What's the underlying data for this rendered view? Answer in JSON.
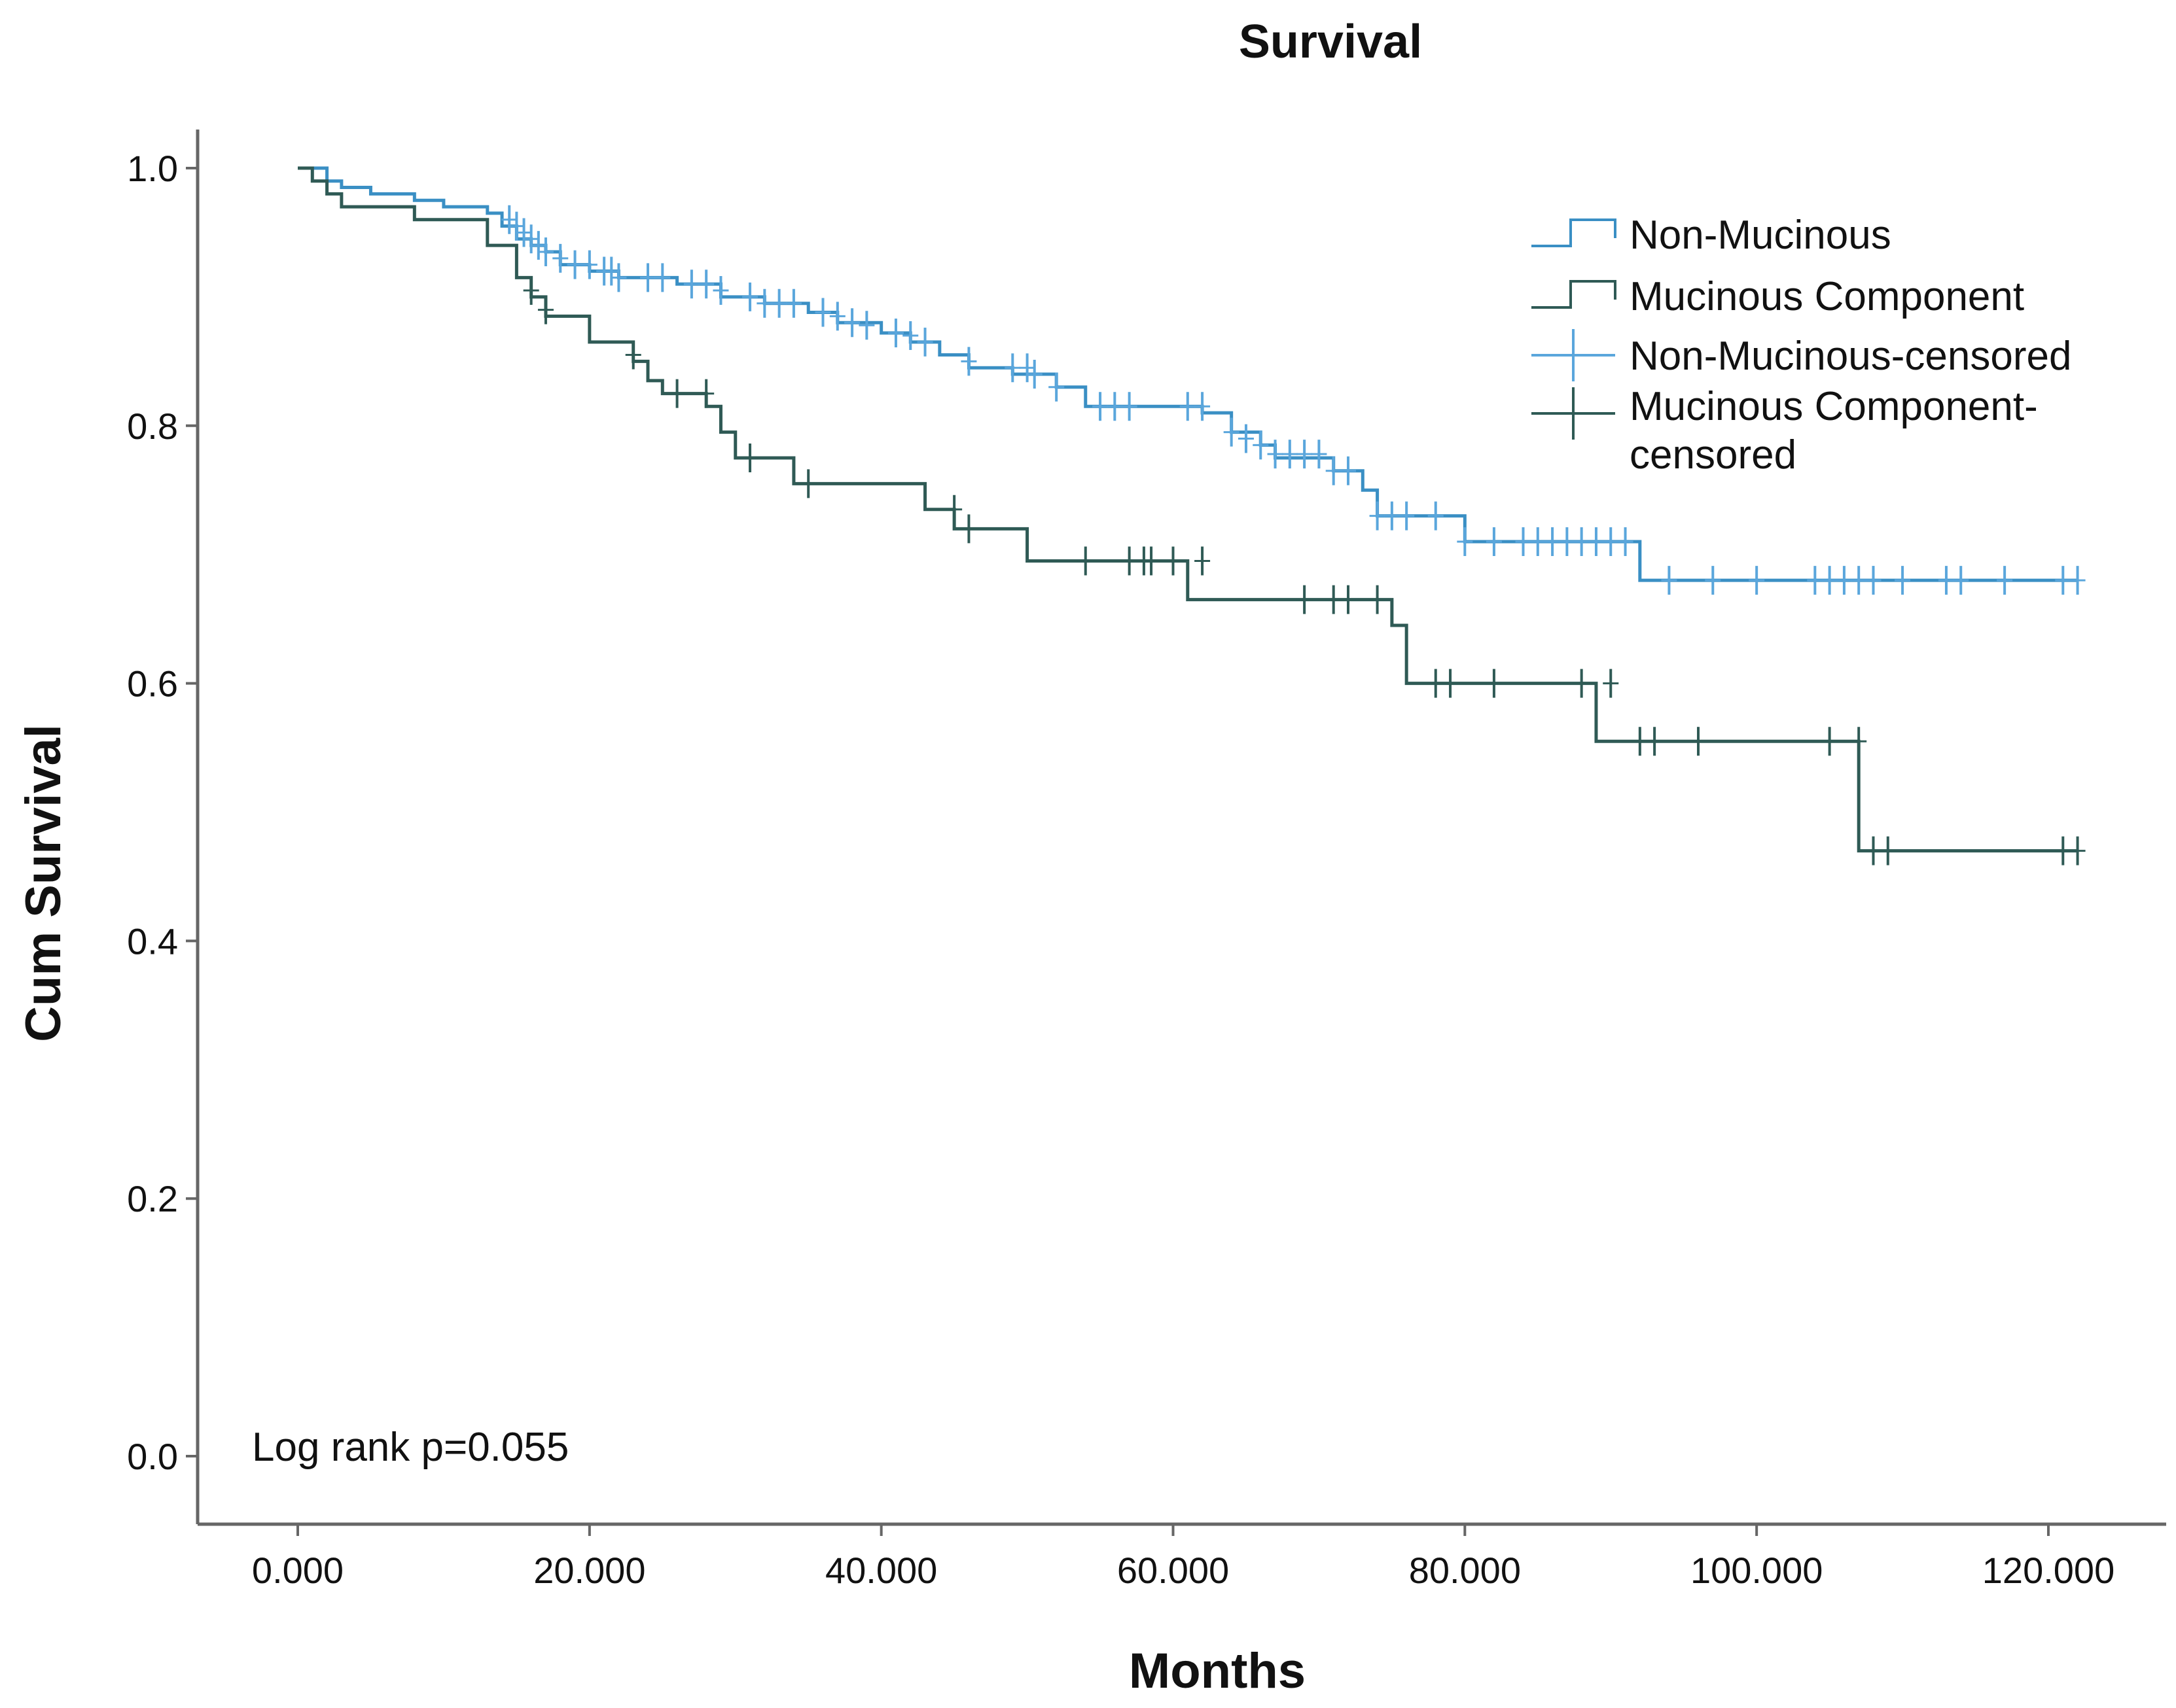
{
  "chart_data": {
    "type": "line",
    "subtype": "kaplan-meier-step",
    "title": "Survival",
    "xlabel": "Months",
    "ylabel": "Cum Survival",
    "xlim": [
      -3,
      126
    ],
    "ylim": [
      -0.05,
      1.03
    ],
    "x_ticks": [
      0,
      20,
      40,
      60,
      80,
      100,
      120
    ],
    "x_tick_labels": [
      "0.000",
      "20.000",
      "40.000",
      "60.000",
      "80.000",
      "100.000",
      "120.000"
    ],
    "y_ticks": [
      0,
      0.2,
      0.4,
      0.6,
      0.8,
      1.0
    ],
    "y_tick_labels": [
      "0.0",
      "0.2",
      "0.4",
      "0.6",
      "0.8",
      "1.0"
    ],
    "grid": false,
    "legend_position": "top-right",
    "annotation": "Log rank p=0.055",
    "colors": {
      "non_mucinous": "#3a8fc4",
      "non_mucinous_censor": "#5aa6dc",
      "mucinous": "#2f5a55",
      "mucinous_censor": "#2f5a55",
      "axis": "#666666",
      "text": "#111111"
    },
    "legend": [
      {
        "label": "Non-Mucinous",
        "kind": "line",
        "series": "non_mucinous"
      },
      {
        "label": "Mucinous Component",
        "kind": "line",
        "series": "mucinous"
      },
      {
        "label": "Non-Mucinous-censored",
        "kind": "censor",
        "series": "non_mucinous_censor"
      },
      {
        "label": "Mucinous Component-censored",
        "kind": "censor",
        "series": "mucinous_censor"
      }
    ],
    "series": [
      {
        "name": "Non-Mucinous",
        "key": "non_mucinous",
        "steps": [
          [
            0,
            1.0
          ],
          [
            2,
            0.99
          ],
          [
            3,
            0.985
          ],
          [
            5,
            0.98
          ],
          [
            8,
            0.975
          ],
          [
            10,
            0.97
          ],
          [
            13,
            0.965
          ],
          [
            14,
            0.955
          ],
          [
            15,
            0.945
          ],
          [
            16,
            0.94
          ],
          [
            17,
            0.935
          ],
          [
            18,
            0.925
          ],
          [
            20,
            0.92
          ],
          [
            22,
            0.915
          ],
          [
            26,
            0.91
          ],
          [
            29,
            0.9
          ],
          [
            32,
            0.895
          ],
          [
            35,
            0.888
          ],
          [
            37,
            0.88
          ],
          [
            40,
            0.872
          ],
          [
            42,
            0.865
          ],
          [
            44,
            0.855
          ],
          [
            46,
            0.845
          ],
          [
            49,
            0.84
          ],
          [
            52,
            0.83
          ],
          [
            54,
            0.815
          ],
          [
            62,
            0.81
          ],
          [
            64,
            0.795
          ],
          [
            66,
            0.785
          ],
          [
            67,
            0.775
          ],
          [
            71,
            0.765
          ],
          [
            73,
            0.75
          ],
          [
            74,
            0.73
          ],
          [
            80,
            0.71
          ],
          [
            92,
            0.68
          ],
          [
            122,
            0.68
          ]
        ],
        "censored": [
          [
            14.5,
            0.96
          ],
          [
            15,
            0.955
          ],
          [
            15.5,
            0.95
          ],
          [
            16,
            0.945
          ],
          [
            16.5,
            0.94
          ],
          [
            17,
            0.935
          ],
          [
            18,
            0.93
          ],
          [
            19,
            0.925
          ],
          [
            20,
            0.925
          ],
          [
            21,
            0.92
          ],
          [
            21.5,
            0.92
          ],
          [
            22,
            0.915
          ],
          [
            24,
            0.915
          ],
          [
            25,
            0.915
          ],
          [
            27,
            0.91
          ],
          [
            28,
            0.91
          ],
          [
            29,
            0.905
          ],
          [
            31,
            0.9
          ],
          [
            32,
            0.895
          ],
          [
            33,
            0.895
          ],
          [
            34,
            0.895
          ],
          [
            36,
            0.888
          ],
          [
            37,
            0.885
          ],
          [
            38,
            0.88
          ],
          [
            39,
            0.878
          ],
          [
            41,
            0.872
          ],
          [
            42,
            0.87
          ],
          [
            43,
            0.865
          ],
          [
            46,
            0.85
          ],
          [
            49,
            0.845
          ],
          [
            50,
            0.845
          ],
          [
            50.5,
            0.84
          ],
          [
            52,
            0.83
          ],
          [
            55,
            0.815
          ],
          [
            56,
            0.815
          ],
          [
            57,
            0.815
          ],
          [
            61,
            0.815
          ],
          [
            62,
            0.815
          ],
          [
            64,
            0.795
          ],
          [
            65,
            0.79
          ],
          [
            66,
            0.785
          ],
          [
            67,
            0.778
          ],
          [
            68,
            0.778
          ],
          [
            69,
            0.778
          ],
          [
            70,
            0.778
          ],
          [
            71,
            0.765
          ],
          [
            72,
            0.765
          ],
          [
            74,
            0.73
          ],
          [
            75,
            0.73
          ],
          [
            76,
            0.73
          ],
          [
            78,
            0.73
          ],
          [
            80,
            0.71
          ],
          [
            82,
            0.71
          ],
          [
            84,
            0.71
          ],
          [
            85,
            0.71
          ],
          [
            86,
            0.71
          ],
          [
            87,
            0.71
          ],
          [
            88,
            0.71
          ],
          [
            89,
            0.71
          ],
          [
            90,
            0.71
          ],
          [
            91,
            0.71
          ],
          [
            94,
            0.68
          ],
          [
            97,
            0.68
          ],
          [
            100,
            0.68
          ],
          [
            104,
            0.68
          ],
          [
            105,
            0.68
          ],
          [
            106,
            0.68
          ],
          [
            107,
            0.68
          ],
          [
            108,
            0.68
          ],
          [
            110,
            0.68
          ],
          [
            113,
            0.68
          ],
          [
            114,
            0.68
          ],
          [
            117,
            0.68
          ],
          [
            121,
            0.68
          ],
          [
            122,
            0.68
          ]
        ]
      },
      {
        "name": "Mucinous Component",
        "key": "mucinous",
        "steps": [
          [
            0,
            1.0
          ],
          [
            1,
            0.99
          ],
          [
            2,
            0.98
          ],
          [
            3,
            0.97
          ],
          [
            8,
            0.96
          ],
          [
            13,
            0.94
          ],
          [
            15,
            0.915
          ],
          [
            16,
            0.9
          ],
          [
            17,
            0.885
          ],
          [
            20,
            0.865
          ],
          [
            23,
            0.85
          ],
          [
            24,
            0.835
          ],
          [
            25,
            0.825
          ],
          [
            28,
            0.815
          ],
          [
            29,
            0.795
          ],
          [
            30,
            0.775
          ],
          [
            34,
            0.755
          ],
          [
            43,
            0.735
          ],
          [
            45,
            0.72
          ],
          [
            50,
            0.695
          ],
          [
            61,
            0.665
          ],
          [
            75,
            0.645
          ],
          [
            76,
            0.6
          ],
          [
            89,
            0.555
          ],
          [
            107,
            0.47
          ],
          [
            122,
            0.47
          ]
        ],
        "censored": [
          [
            16,
            0.905
          ],
          [
            17,
            0.89
          ],
          [
            23,
            0.855
          ],
          [
            26,
            0.825
          ],
          [
            28,
            0.825
          ],
          [
            31,
            0.775
          ],
          [
            35,
            0.755
          ],
          [
            45,
            0.735
          ],
          [
            46,
            0.72
          ],
          [
            54,
            0.695
          ],
          [
            57,
            0.695
          ],
          [
            58,
            0.695
          ],
          [
            58.5,
            0.695
          ],
          [
            60,
            0.695
          ],
          [
            62,
            0.695
          ],
          [
            69,
            0.665
          ],
          [
            71,
            0.665
          ],
          [
            72,
            0.665
          ],
          [
            74,
            0.665
          ],
          [
            78,
            0.6
          ],
          [
            79,
            0.6
          ],
          [
            82,
            0.6
          ],
          [
            88,
            0.6
          ],
          [
            90,
            0.6
          ],
          [
            92,
            0.555
          ],
          [
            93,
            0.555
          ],
          [
            96,
            0.555
          ],
          [
            105,
            0.555
          ],
          [
            107,
            0.555
          ],
          [
            108,
            0.47
          ],
          [
            109,
            0.47
          ],
          [
            121,
            0.47
          ],
          [
            122,
            0.47
          ]
        ]
      }
    ]
  }
}
